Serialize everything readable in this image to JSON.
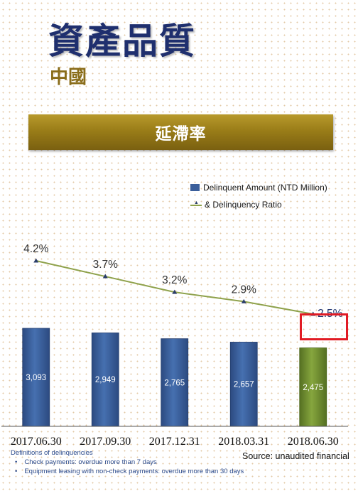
{
  "header": {
    "title": "資產品質",
    "subtitle": "中國",
    "banner": "延滯率"
  },
  "chart_data": {
    "type": "bar",
    "categories": [
      "2017.06.30",
      "2017.09.30",
      "2017.12.31",
      "2018.03.31",
      "2018.06.30"
    ],
    "series": [
      {
        "name": "Delinquent Amount (NTD Million)",
        "type": "bar",
        "values": [
          3093,
          2949,
          2765,
          2657,
          2475
        ],
        "labels": [
          "3,093",
          "2,949",
          "2,765",
          "2,657",
          "2,475"
        ]
      },
      {
        "name": "& Delinquency Ratio",
        "type": "line",
        "values": [
          4.2,
          3.7,
          3.2,
          2.9,
          2.5
        ],
        "labels": [
          "4.2%",
          "3.7%",
          "3.2%",
          "2.9%",
          "2.5%"
        ]
      }
    ],
    "highlighted_category": "2018.06.30",
    "colors": {
      "bar": "#3b5f9b",
      "bar_highlight": "#6f8e30",
      "line": "#8fa24c",
      "marker": "#2c3f6b",
      "highlight_box": "#e11b24"
    }
  },
  "footer": {
    "definitions_title": "Definitions of delinquencies",
    "definitions": [
      "Check payments: overdue more than 7 days",
      "Equipment leasing with non-check payments: overdue more than 30 days"
    ],
    "source": "Source: unaudited financial"
  }
}
